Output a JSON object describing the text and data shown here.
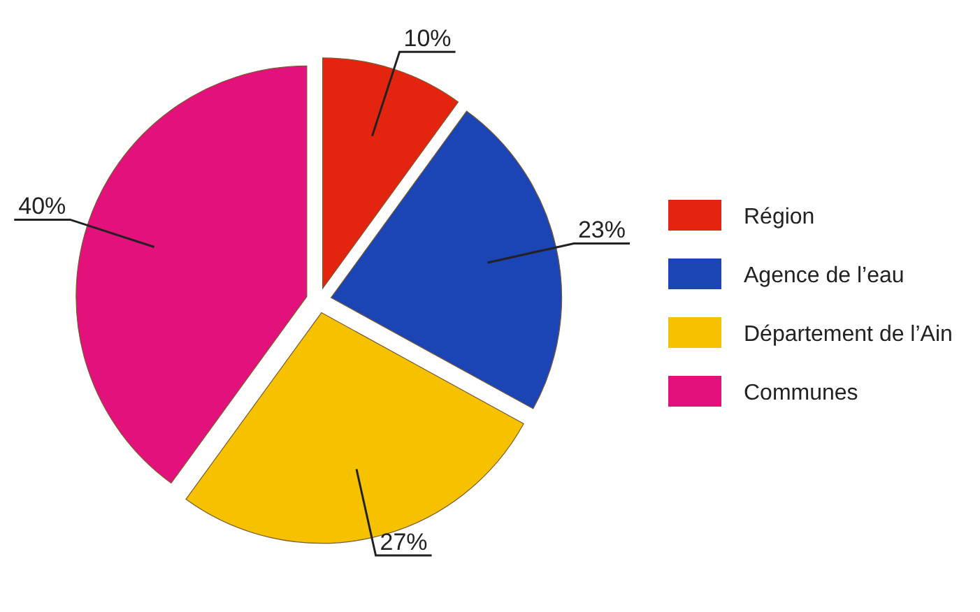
{
  "chart_data": {
    "type": "pie",
    "categories": [
      "Région",
      "Agence de l’eau",
      "Département de  l’Ain",
      "Communes"
    ],
    "values": [
      10,
      23,
      27,
      40
    ],
    "colors": [
      "#e3240f",
      "#1b45b5",
      "#f6c200",
      "#e2117c"
    ],
    "value_labels": [
      "10%",
      "23%",
      "27%",
      "40%"
    ],
    "legend": "right"
  }
}
